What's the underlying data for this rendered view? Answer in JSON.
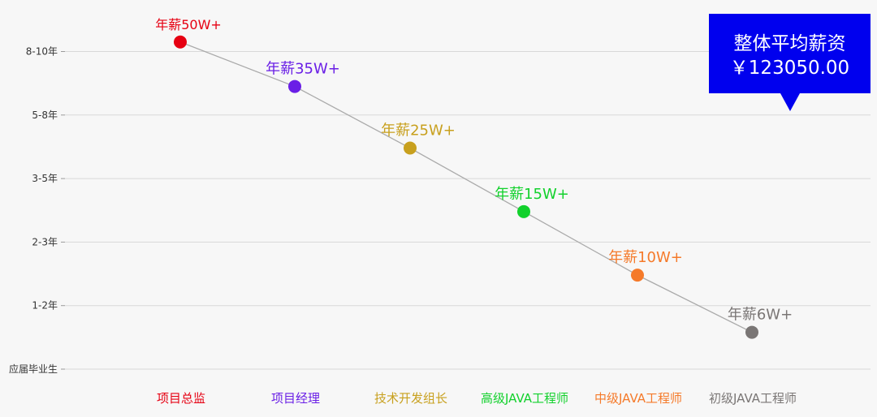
{
  "chart_data": {
    "type": "line",
    "categories": [
      "项目总监",
      "项目经理",
      "技术开发组长",
      "高级JAVA工程师",
      "中级JAVA工程师",
      "初级JAVA工程师"
    ],
    "y_ticks": [
      "应届毕业生",
      "1-2年",
      "2-3年",
      "3-5年",
      "5-8年",
      "8-10年"
    ],
    "values": [
      5.15,
      4.45,
      3.48,
      2.48,
      1.48,
      0.58
    ],
    "point_labels": [
      "年薪50W+",
      "年薪35W+",
      "年薪25W+",
      "年薪15W+",
      "年薪10W+",
      "年薪6W+"
    ],
    "point_colors": [
      "#e60012",
      "#6a1fe6",
      "#c8a01e",
      "#12d12c",
      "#f57a2a",
      "#7a7675"
    ],
    "line_color": "#aaaaaa",
    "grid": true,
    "ylim": [
      0,
      5
    ]
  },
  "callout": {
    "title": "整体平均薪资",
    "value": "￥123050.00",
    "color": "#0000ee"
  }
}
